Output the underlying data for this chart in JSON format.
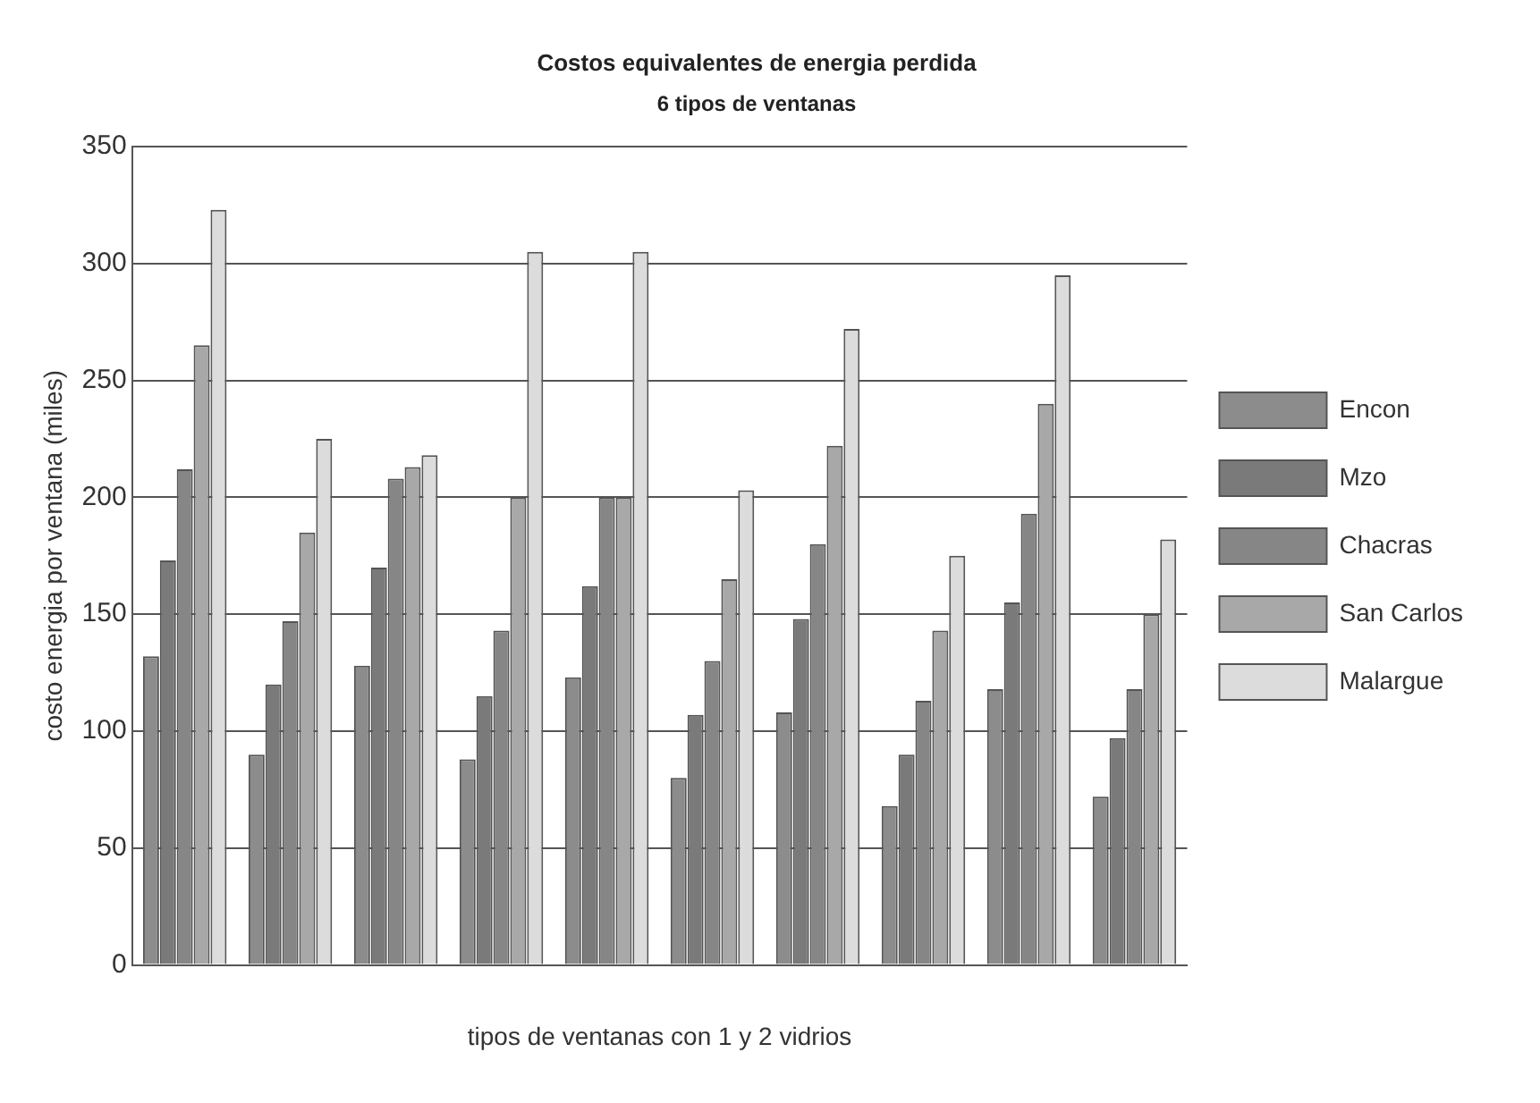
{
  "chart_data": {
    "type": "bar",
    "title": "Costos equivalentes de energia perdida",
    "subtitle": "6 tipos de ventanas",
    "xlabel": "tipos de ventanas con 1 y 2 vidrios",
    "ylabel": "costo energia por ventana (miles)",
    "categories": [
      null,
      null,
      null,
      null,
      null,
      null,
      null,
      null,
      null,
      null
    ],
    "series": [
      {
        "name": "Encon",
        "color": "#8c8c8c",
        "values": [
          132,
          90,
          128,
          88,
          123,
          80,
          108,
          68,
          118,
          72
        ]
      },
      {
        "name": "Mzo",
        "color": "#7a7a7a",
        "values": [
          173,
          120,
          170,
          115,
          162,
          107,
          148,
          90,
          155,
          97
        ]
      },
      {
        "name": "Chacras",
        "color": "#868686",
        "values": [
          212,
          147,
          208,
          143,
          200,
          130,
          180,
          113,
          193,
          118
        ]
      },
      {
        "name": "San Carlos",
        "color": "#a8a8a8",
        "values": [
          265,
          185,
          213,
          200,
          200,
          165,
          222,
          143,
          240,
          150
        ]
      },
      {
        "name": "Malargue",
        "color": "#dcdcdc",
        "values": [
          323,
          225,
          218,
          305,
          305,
          203,
          272,
          175,
          295,
          182
        ]
      }
    ],
    "ylim": [
      0,
      350
    ],
    "yticks": [
      0,
      50,
      100,
      150,
      200,
      250,
      300,
      350
    ],
    "grid": "y",
    "legend": "right"
  }
}
